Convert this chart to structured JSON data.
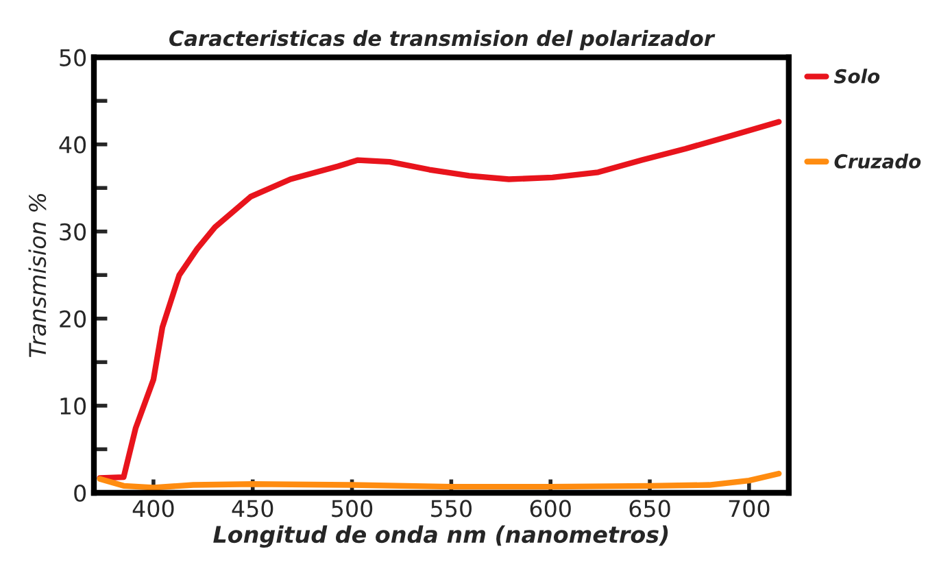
{
  "chart_data": {
    "type": "line",
    "title": "Caracteristicas de transmision del polarizador",
    "xlabel": "Longitud de onda nm (nanometros)",
    "ylabel": "Transmision %",
    "series": [
      {
        "name": "Solo",
        "color": "#e8141c",
        "x": [
          373,
          385,
          391,
          400,
          404.5,
          413,
          422,
          431,
          449,
          469,
          493,
          503,
          519,
          539,
          559,
          579,
          601,
          624,
          646,
          668,
          691,
          715
        ],
        "values": [
          1.7,
          1.8,
          7.4,
          13,
          19,
          25,
          28,
          30.5,
          34,
          36,
          37.5,
          38.2,
          38,
          37.1,
          36.4,
          36,
          36.2,
          36.8,
          38.2,
          39.5,
          41,
          42.6
        ]
      },
      {
        "name": "Cruzado",
        "color": "#ff8c10",
        "x": [
          373,
          385,
          400,
          420,
          450,
          500,
          550,
          600,
          650,
          680,
          700,
          715
        ],
        "values": [
          1.6,
          0.8,
          0.6,
          0.9,
          1.0,
          0.9,
          0.7,
          0.7,
          0.8,
          0.9,
          1.4,
          2.2
        ]
      }
    ],
    "xlim": [
      370,
      720
    ],
    "ylim": [
      0,
      50
    ],
    "xticks": [
      400,
      450,
      500,
      550,
      600,
      650,
      700
    ],
    "yticks": [
      0,
      {
        "value": 5,
        "label": null
      },
      10,
      {
        "value": 15,
        "label": null
      },
      20,
      {
        "value": 25,
        "label": null
      },
      30,
      {
        "value": 35,
        "label": null
      },
      40,
      {
        "value": 45,
        "label": null
      },
      50
    ],
    "grid": false,
    "legend": "right",
    "marker": "none",
    "line_style": "solid"
  }
}
